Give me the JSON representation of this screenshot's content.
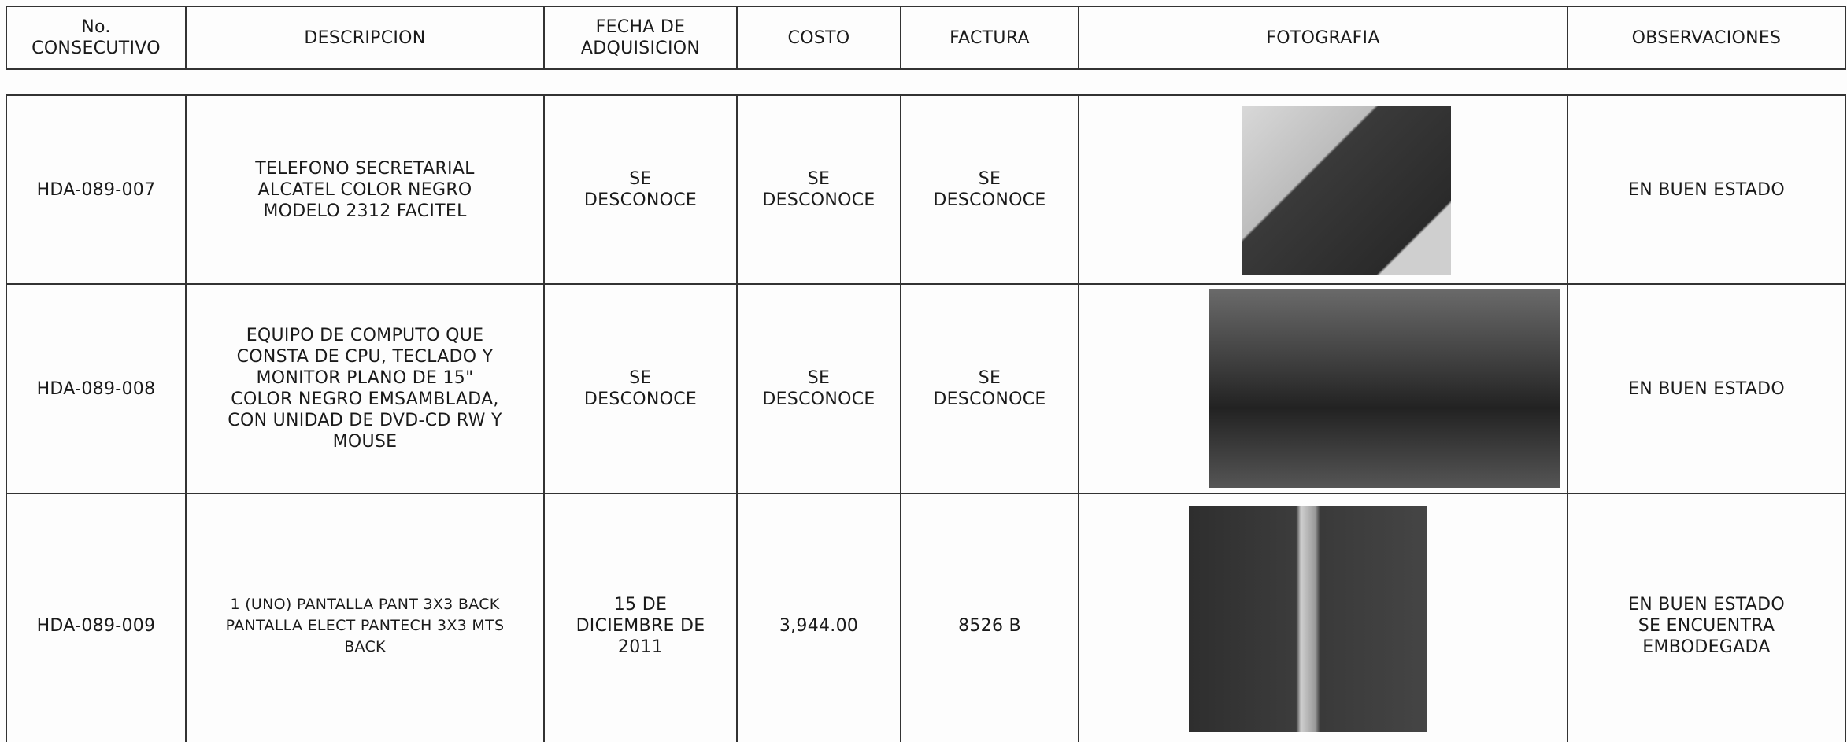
{
  "table": {
    "header": [
      [
        "No.",
        "CONSECUTIVO"
      ],
      [
        "DESCRIPCION"
      ],
      [
        "FECHA DE",
        "ADQUISICION"
      ],
      [
        "COSTO"
      ],
      [
        "FACTURA"
      ],
      [
        "FOTOGRAFIA"
      ],
      [
        "OBSERVACIONES"
      ]
    ],
    "rows": [
      [
        [
          "HDA-089-007"
        ],
        [
          "TELEFONO SECRETARIAL",
          "ALCATEL COLOR NEGRO",
          "MODELO 2312 FACITEL"
        ],
        [
          "SE",
          "DESCONOCE"
        ],
        [
          "SE",
          "DESCONOCE"
        ],
        [
          "SE",
          "DESCONOCE"
        ],
        [
          "EN BUEN ESTADO"
        ]
      ],
      [
        [
          "HDA-089-008"
        ],
        [
          "EQUIPO DE COMPUTO QUE",
          "CONSTA DE CPU, TECLADO Y",
          "MONITOR PLANO DE 15\"",
          "COLOR NEGRO EMSAMBLADA,",
          "CON UNIDAD DE DVD-CD RW Y",
          "MOUSE"
        ],
        [
          "SE",
          "DESCONOCE"
        ],
        [
          "SE",
          "DESCONOCE"
        ],
        [
          "SE",
          "DESCONOCE"
        ],
        [
          "EN BUEN ESTADO"
        ]
      ],
      [
        [
          "HDA-089-009"
        ],
        [
          "1 (UNO) PANTALLA PANT 3X3 BACK",
          "PANTALLA ELECT PANTECH 3X3 MTS",
          "BACK"
        ],
        [
          "15 DE",
          "DICIEMBRE DE",
          "2011"
        ],
        [
          "3,944.00"
        ],
        [
          "8526 B"
        ],
        [
          "EN BUEN ESTADO",
          "SE ENCUENTRA",
          "EMBODEGADA"
        ]
      ]
    ]
  }
}
